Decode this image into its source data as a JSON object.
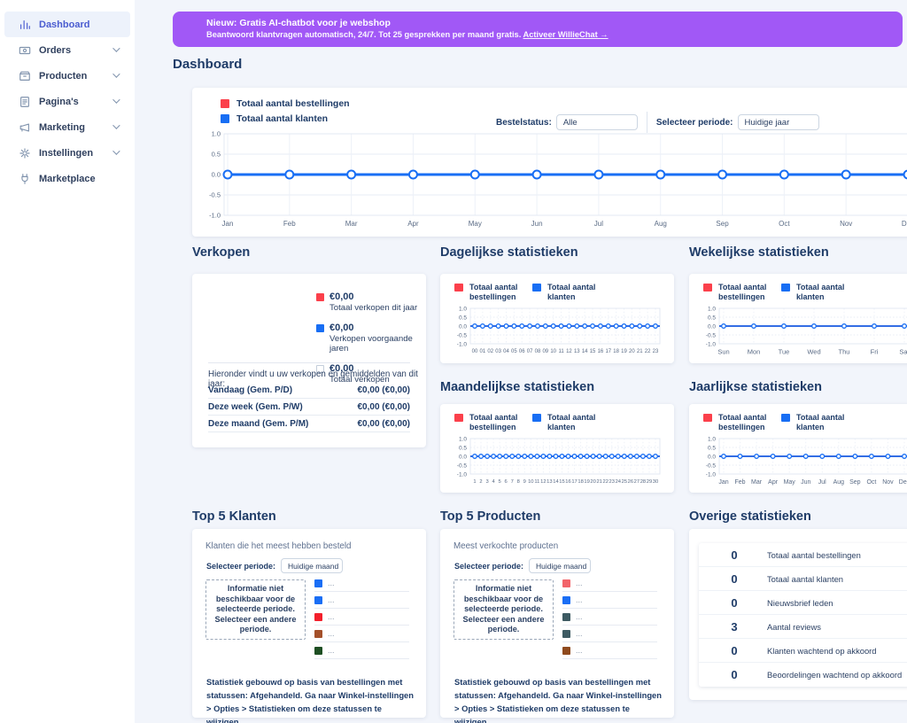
{
  "colors": {
    "banner_purple": "#a158f6",
    "navy": "#1f3c68",
    "red": "#fb404b",
    "blue": "#186ef4",
    "line_blue": "#2273f2",
    "active_sidebar": "#4a5cd0",
    "icon_gray": "#8093ad"
  },
  "sidebar": {
    "items": [
      {
        "label": "Dashboard",
        "icon": "chart-icon",
        "active": true,
        "chevron": false
      },
      {
        "label": "Orders",
        "icon": "orders-icon",
        "active": false,
        "chevron": true
      },
      {
        "label": "Producten",
        "icon": "box-icon",
        "active": false,
        "chevron": true
      },
      {
        "label": "Pagina's",
        "icon": "pages-icon",
        "active": false,
        "chevron": true
      },
      {
        "label": "Marketing",
        "icon": "megaphone-icon",
        "active": false,
        "chevron": true
      },
      {
        "label": "Instellingen",
        "icon": "gear-icon",
        "active": false,
        "chevron": true
      },
      {
        "label": "Marketplace",
        "icon": "plug-icon",
        "active": false,
        "chevron": false
      }
    ]
  },
  "banner": {
    "title": "Nieuw: Gratis AI-chatbot voor je webshop",
    "body": "Beantwoord klantvragen automatisch, 24/7. Tot 25 gesprekken per maand gratis.",
    "link": "Activeer WillieChat →"
  },
  "page": {
    "title": "Dashboard"
  },
  "main_chart": {
    "filters": {
      "status_label": "Bestelstatus:",
      "status_value": "Alle",
      "period_label": "Selecteer periode:",
      "period_value": "Huidige jaar"
    }
  },
  "stat_panels": {
    "daily_title": "Dagelijkse statistieken",
    "weekly_title": "Wekelijkse statistieken",
    "monthly_title": "Maandelijkse statistieken",
    "yearly_title": "Jaarlijkse statistieken"
  },
  "chart_data": [
    {
      "id": "year_overview",
      "type": "line",
      "title": "Dashboard",
      "categories": [
        "Jan",
        "Feb",
        "Mar",
        "Apr",
        "May",
        "Jun",
        "Jul",
        "Aug",
        "Sep",
        "Oct",
        "Nov",
        "Dec"
      ],
      "yticks": [
        "1.0",
        "0.5",
        "0.0",
        "-0.5",
        "-1.0"
      ],
      "ylim": [
        -1,
        1
      ],
      "grid": true,
      "legend_position": "top-left",
      "series": [
        {
          "name": "Totaal aantal bestellingen",
          "color": "#fb404b",
          "values": [
            0,
            0,
            0,
            0,
            0,
            0,
            0,
            0,
            0,
            0,
            0,
            0
          ]
        },
        {
          "name": "Totaal aantal klanten",
          "color": "#186ef4",
          "values": [
            0,
            0,
            0,
            0,
            0,
            0,
            0,
            0,
            0,
            0,
            0,
            0
          ]
        }
      ]
    },
    {
      "id": "daily",
      "type": "line",
      "title": "Dagelijkse statistieken",
      "categories": [
        "00",
        "01",
        "02",
        "03",
        "04",
        "05",
        "06",
        "07",
        "08",
        "09",
        "10",
        "11",
        "12",
        "13",
        "14",
        "15",
        "16",
        "17",
        "18",
        "19",
        "20",
        "21",
        "22",
        "23"
      ],
      "yticks": [
        "1.0",
        "0.5",
        "0.0",
        "-0.5",
        "-1.0"
      ],
      "ylim": [
        -1,
        1
      ],
      "grid": true,
      "series": [
        {
          "name": "Totaal aantal bestellingen",
          "color": "#fb404b",
          "values": [
            0,
            0,
            0,
            0,
            0,
            0,
            0,
            0,
            0,
            0,
            0,
            0,
            0,
            0,
            0,
            0,
            0,
            0,
            0,
            0,
            0,
            0,
            0,
            0
          ]
        },
        {
          "name": "Totaal aantal klanten",
          "color": "#186ef4",
          "values": [
            0,
            0,
            0,
            0,
            0,
            0,
            0,
            0,
            0,
            0,
            0,
            0,
            0,
            0,
            0,
            0,
            0,
            0,
            0,
            0,
            0,
            0,
            0,
            0
          ]
        }
      ]
    },
    {
      "id": "weekly",
      "type": "line",
      "title": "Wekelijkse statistieken",
      "categories": [
        "Sun",
        "Mon",
        "Tue",
        "Wed",
        "Thu",
        "Fri",
        "Sat"
      ],
      "yticks": [
        "1.0",
        "0.5",
        "0.0",
        "-0.5",
        "-1.0"
      ],
      "ylim": [
        -1,
        1
      ],
      "grid": true,
      "series": [
        {
          "name": "Totaal aantal bestellingen",
          "color": "#fb404b",
          "values": [
            0,
            0,
            0,
            0,
            0,
            0,
            0
          ]
        },
        {
          "name": "Totaal aantal klanten",
          "color": "#186ef4",
          "values": [
            0,
            0,
            0,
            0,
            0,
            0,
            0
          ]
        }
      ]
    },
    {
      "id": "monthly",
      "type": "line",
      "title": "Maandelijkse statistieken",
      "categories": [
        "1",
        "2",
        "3",
        "4",
        "5",
        "6",
        "7",
        "8",
        "9",
        "10",
        "11",
        "12",
        "13",
        "14",
        "15",
        "16",
        "17",
        "18",
        "19",
        "20",
        "21",
        "22",
        "23",
        "24",
        "25",
        "26",
        "27",
        "28",
        "29",
        "30"
      ],
      "yticks": [
        "1.0",
        "0.5",
        "0.0",
        "-0.5",
        "-1.0"
      ],
      "ylim": [
        -1,
        1
      ],
      "grid": true,
      "series": [
        {
          "name": "Totaal aantal bestellingen",
          "color": "#fb404b",
          "values": [
            0,
            0,
            0,
            0,
            0,
            0,
            0,
            0,
            0,
            0,
            0,
            0,
            0,
            0,
            0,
            0,
            0,
            0,
            0,
            0,
            0,
            0,
            0,
            0,
            0,
            0,
            0,
            0,
            0,
            0
          ]
        },
        {
          "name": "Totaal aantal klanten",
          "color": "#186ef4",
          "values": [
            0,
            0,
            0,
            0,
            0,
            0,
            0,
            0,
            0,
            0,
            0,
            0,
            0,
            0,
            0,
            0,
            0,
            0,
            0,
            0,
            0,
            0,
            0,
            0,
            0,
            0,
            0,
            0,
            0,
            0
          ]
        }
      ]
    },
    {
      "id": "yearly",
      "type": "line",
      "title": "Jaarlijkse statistieken",
      "categories": [
        "Jan",
        "Feb",
        "Mar",
        "Apr",
        "May",
        "Jun",
        "Jul",
        "Aug",
        "Sep",
        "Oct",
        "Nov",
        "Dec"
      ],
      "yticks": [
        "1.0",
        "0.5",
        "0.0",
        "-0.5",
        "-1.0"
      ],
      "ylim": [
        -1,
        1
      ],
      "grid": true,
      "series": [
        {
          "name": "Totaal aantal bestellingen",
          "color": "#fb404b",
          "values": [
            0,
            0,
            0,
            0,
            0,
            0,
            0,
            0,
            0,
            0,
            0,
            0
          ]
        },
        {
          "name": "Totaal aantal klanten",
          "color": "#186ef4",
          "values": [
            0,
            0,
            0,
            0,
            0,
            0,
            0,
            0,
            0,
            0,
            0,
            0
          ]
        }
      ]
    }
  ],
  "verkopen": {
    "title": "Verkopen",
    "legend": [
      {
        "color": "#fb404b",
        "outline": false,
        "value": "€0,00",
        "label": "Totaal verkopen dit jaar"
      },
      {
        "color": "#186ef4",
        "outline": false,
        "value": "€0,00",
        "label": "Verkopen voorgaande jaren"
      },
      {
        "color": "#ffffff",
        "outline": true,
        "value": "€0,00",
        "label": "Totaal verkopen"
      }
    ],
    "note": "Hieronder vindt u uw verkopen en gemiddelden van dit jaar:",
    "rows": [
      {
        "label": "Vandaag (Gem. P/D)",
        "value": "€0,00 (€0,00)"
      },
      {
        "label": "Deze week (Gem. P/W)",
        "value": "€0,00 (€0,00)"
      },
      {
        "label": "Deze maand (Gem. P/M)",
        "value": "€0,00 (€0,00)"
      }
    ]
  },
  "top5": [
    {
      "title": "Top 5 Klanten",
      "subtitle": "Klanten die het meest hebben besteld",
      "period_label": "Selecteer periode:",
      "period_value": "Huidige maand",
      "empty_message": "Informatie niet beschikbaar voor de selecteerde periode. Selecteer een andere periode.",
      "items": [
        {
          "color": "#1a6ef5",
          "label": "..."
        },
        {
          "color": "#1a6ef5",
          "label": "..."
        },
        {
          "color": "#f31f2b",
          "label": "..."
        },
        {
          "color": "#a4502a",
          "label": "..."
        },
        {
          "color": "#1e4f23",
          "label": "..."
        }
      ],
      "footer": "Statistiek gebouwd op basis van bestellingen met statussen: Afgehandeld. Ga naar Winkel-instellingen > Opties > Statistieken om deze statussen te wijzigen."
    },
    {
      "title": "Top 5 Producten",
      "subtitle": "Meest verkochte producten",
      "period_label": "Selecteer periode:",
      "period_value": "Huidige maand",
      "empty_message": "Informatie niet beschikbaar voor de selecteerde periode. Selecteer een andere periode.",
      "items": [
        {
          "color": "#f2646a",
          "label": "..."
        },
        {
          "color": "#1a6ef5",
          "label": "..."
        },
        {
          "color": "#3d5a62",
          "label": "..."
        },
        {
          "color": "#3d5a62",
          "label": "..."
        },
        {
          "color": "#8f4a1e",
          "label": "..."
        }
      ],
      "footer": "Statistiek gebouwd op basis van bestellingen met statussen: Afgehandeld. Ga naar Winkel-instellingen > Opties > Statistieken om deze statussen te wijzigen."
    }
  ],
  "overige": {
    "title": "Overige statistieken",
    "rows": [
      {
        "value": "0",
        "label": "Totaal aantal bestellingen"
      },
      {
        "value": "0",
        "label": "Totaal aantal klanten"
      },
      {
        "value": "0",
        "label": "Nieuwsbrief leden"
      },
      {
        "value": "3",
        "label": "Aantal reviews"
      },
      {
        "value": "0",
        "label": "Klanten wachtend op akkoord"
      },
      {
        "value": "0",
        "label": "Beoordelingen wachtend op akkoord"
      }
    ]
  }
}
